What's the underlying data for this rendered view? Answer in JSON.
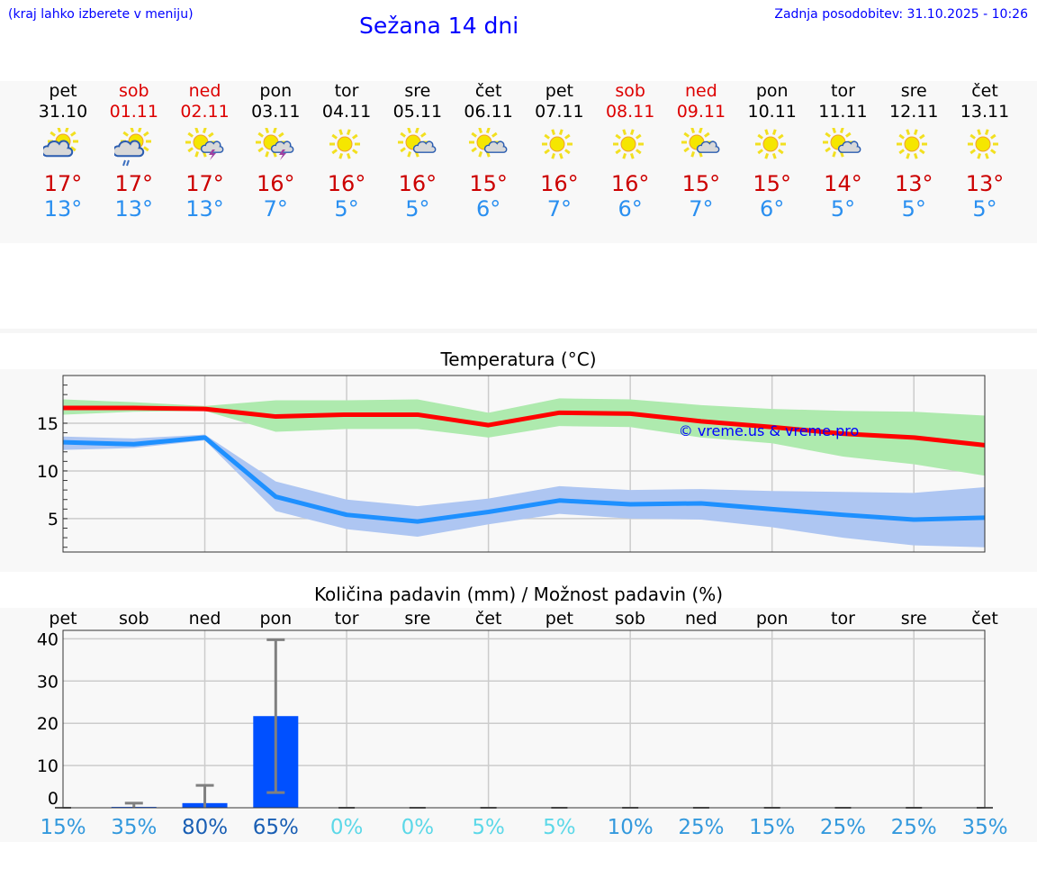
{
  "header": {
    "hint": "(kraj lahko izberete v meniju)",
    "title": "Sežana 14 dni",
    "updated": "Zadnja posodobitev: 31.10.2025 - 10:26"
  },
  "days": [
    {
      "name": "pet",
      "date": "31.10",
      "weekend": false,
      "icon": "partly-cloudy-icon",
      "tmax": "17°",
      "tmin": "13°"
    },
    {
      "name": "sob",
      "date": "01.11",
      "weekend": true,
      "icon": "rain-icon",
      "tmax": "17°",
      "tmin": "13°"
    },
    {
      "name": "ned",
      "date": "02.11",
      "weekend": true,
      "icon": "thunderstorm-icon",
      "tmax": "17°",
      "tmin": "13°"
    },
    {
      "name": "pon",
      "date": "03.11",
      "weekend": false,
      "icon": "thunderstorm-icon",
      "tmax": "16°",
      "tmin": "7°"
    },
    {
      "name": "tor",
      "date": "04.11",
      "weekend": false,
      "icon": "sun-icon",
      "tmax": "16°",
      "tmin": "5°"
    },
    {
      "name": "sre",
      "date": "05.11",
      "weekend": false,
      "icon": "sun-small-cloud-icon",
      "tmax": "16°",
      "tmin": "5°"
    },
    {
      "name": "čet",
      "date": "06.11",
      "weekend": false,
      "icon": "sun-small-cloud-icon",
      "tmax": "15°",
      "tmin": "6°"
    },
    {
      "name": "pet",
      "date": "07.11",
      "weekend": false,
      "icon": "sun-icon",
      "tmax": "16°",
      "tmin": "7°"
    },
    {
      "name": "sob",
      "date": "08.11",
      "weekend": true,
      "icon": "sun-icon",
      "tmax": "16°",
      "tmin": "6°"
    },
    {
      "name": "ned",
      "date": "09.11",
      "weekend": true,
      "icon": "sun-small-cloud-icon",
      "tmax": "15°",
      "tmin": "7°"
    },
    {
      "name": "pon",
      "date": "10.11",
      "weekend": false,
      "icon": "sun-icon",
      "tmax": "15°",
      "tmin": "6°"
    },
    {
      "name": "tor",
      "date": "11.11",
      "weekend": false,
      "icon": "sun-small-cloud-icon",
      "tmax": "14°",
      "tmin": "5°"
    },
    {
      "name": "sre",
      "date": "12.11",
      "weekend": false,
      "icon": "sun-icon",
      "tmax": "13°",
      "tmin": "5°"
    },
    {
      "name": "čet",
      "date": "13.11",
      "weekend": false,
      "icon": "sun-icon",
      "tmax": "13°",
      "tmin": "5°"
    }
  ],
  "colors": {
    "max": "#ff0000",
    "min": "#1e90ff",
    "maxband": "#aeeaae",
    "minband": "#aec6f2",
    "bar": "#0050ff",
    "err": "#808080",
    "copyright": "#0000ff"
  },
  "chart_data": [
    {
      "type": "line",
      "title": "Temperatura (°C)",
      "ylim": [
        1.5,
        20
      ],
      "yticks": [
        5,
        10,
        15
      ],
      "grid": true,
      "annotation": "© vreme.us & vreme.pro",
      "x": [
        "31.10",
        "01.11",
        "02.11",
        "03.11",
        "04.11",
        "05.11",
        "06.11",
        "07.11",
        "08.11",
        "09.11",
        "10.11",
        "11.11",
        "12.11",
        "13.11"
      ],
      "series": [
        {
          "name": "max",
          "values": [
            16.6,
            16.6,
            16.5,
            15.7,
            15.9,
            15.9,
            14.8,
            16.1,
            16.0,
            15.2,
            14.6,
            13.9,
            13.5,
            12.7
          ],
          "band_upper": [
            17.5,
            17.2,
            16.8,
            17.4,
            17.4,
            17.5,
            16.1,
            17.6,
            17.5,
            16.9,
            16.5,
            16.3,
            16.2,
            15.8
          ],
          "band_lower": [
            15.9,
            16.2,
            16.3,
            14.1,
            14.4,
            14.4,
            13.5,
            14.7,
            14.6,
            13.5,
            12.9,
            11.5,
            10.7,
            9.5
          ]
        },
        {
          "name": "min",
          "values": [
            13.0,
            12.8,
            13.5,
            7.3,
            5.4,
            4.7,
            5.7,
            6.9,
            6.5,
            6.6,
            6.0,
            5.4,
            4.9,
            5.1
          ],
          "band_upper": [
            13.6,
            13.4,
            13.8,
            8.9,
            7.0,
            6.3,
            7.1,
            8.4,
            8.0,
            8.1,
            7.9,
            7.8,
            7.7,
            8.3
          ],
          "band_lower": [
            12.2,
            12.4,
            13.2,
            5.8,
            3.9,
            3.1,
            4.4,
            5.5,
            5.0,
            4.9,
            4.1,
            3.0,
            2.2,
            2.0
          ]
        }
      ]
    },
    {
      "type": "bar",
      "title": "Količina padavin (mm) / Možnost padavin (%)",
      "ylim": [
        0,
        42
      ],
      "yticks": [
        0,
        10,
        20,
        30,
        40
      ],
      "grid": true,
      "categories": [
        "pet",
        "sob",
        "ned",
        "pon",
        "tor",
        "sre",
        "čet",
        "pet",
        "sob",
        "ned",
        "pon",
        "tor",
        "sre",
        "čet"
      ],
      "values": [
        0,
        0.2,
        1.1,
        21.7,
        0,
        0,
        0,
        0,
        0,
        0,
        0,
        0,
        0,
        0
      ],
      "err_low": [
        0,
        0,
        0,
        3.6,
        0,
        0,
        0,
        0,
        0,
        0,
        0,
        0,
        0,
        0
      ],
      "err_high": [
        0,
        1.1,
        5.3,
        39.8,
        0,
        0,
        0,
        0,
        0,
        0,
        0,
        0,
        0,
        0
      ],
      "probability": [
        "15%",
        "35%",
        "80%",
        "65%",
        "0%",
        "0%",
        "5%",
        "5%",
        "10%",
        "25%",
        "15%",
        "25%",
        "25%",
        "35%"
      ],
      "probability_values": [
        15,
        35,
        80,
        65,
        0,
        0,
        5,
        5,
        10,
        25,
        15,
        25,
        25,
        35
      ]
    }
  ]
}
